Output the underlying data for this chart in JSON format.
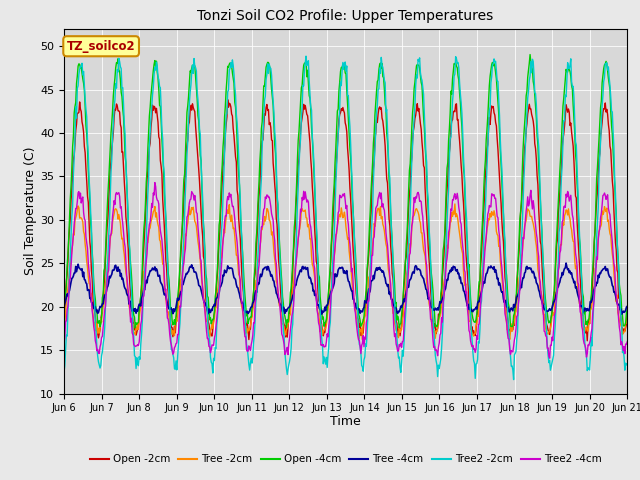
{
  "title": "Tonzi Soil CO2 Profile: Upper Temperatures",
  "xlabel": "Time",
  "ylabel": "Soil Temperature (C)",
  "ylim": [
    10,
    52
  ],
  "yticks": [
    10,
    15,
    20,
    25,
    30,
    35,
    40,
    45,
    50
  ],
  "background_color": "#e8e8e8",
  "plot_bg_color": "#d8d8d8",
  "label_box_text": "TZ_soilco2",
  "label_box_color": "#ffff99",
  "label_box_edge": "#cc8800",
  "series_colors": {
    "Open -2cm": "#cc0000",
    "Tree -2cm": "#ff8800",
    "Open -4cm": "#00cc00",
    "Tree -4cm": "#000099",
    "Tree2 -2cm": "#00cccc",
    "Tree2 -4cm": "#cc00cc"
  },
  "n_days": 15,
  "start_day": 6,
  "samples_per_day": 48,
  "tick_labels": [
    "Jun 6",
    "Jun 7",
    "Jun 8",
    "Jun 9",
    "Jun 10",
    "Jun 11",
    "Jun 12",
    "Jun 13",
    "Jun 14",
    "Jun 15",
    "Jun 16",
    "Jun 17",
    "Jun 18",
    "Jun 19",
    "Jun 20",
    "Jun 21"
  ]
}
